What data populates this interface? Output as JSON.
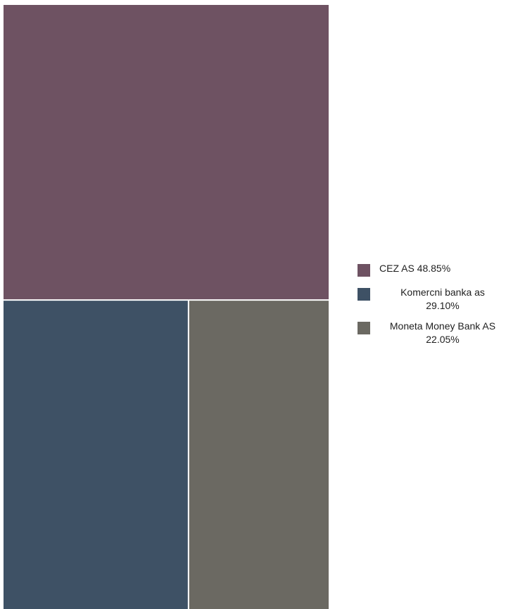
{
  "chart_data": {
    "type": "treemap",
    "total": 100,
    "segments": [
      {
        "name": "CEZ AS",
        "value": 48.85,
        "label": "CEZ AS 48.85%",
        "color": "#6e5262"
      },
      {
        "name": "Komercni banka as",
        "value": 29.1,
        "label": "Komercni banka as 29.10%",
        "color": "#3e5165"
      },
      {
        "name": "Moneta Money Bank AS",
        "value": 22.05,
        "label": "Moneta Money Bank AS 22.05%",
        "color": "#6b6962"
      }
    ],
    "legend": {
      "position": "right",
      "items": [
        {
          "line1": "CEZ AS 48.85%",
          "line2": "",
          "color": "#6e5262"
        },
        {
          "line1": "Komercni banka as",
          "line2": "29.10%",
          "color": "#3e5165"
        },
        {
          "line1": "Moneta Money Bank AS",
          "line2": "22.05%",
          "color": "#6b6962"
        }
      ]
    }
  }
}
